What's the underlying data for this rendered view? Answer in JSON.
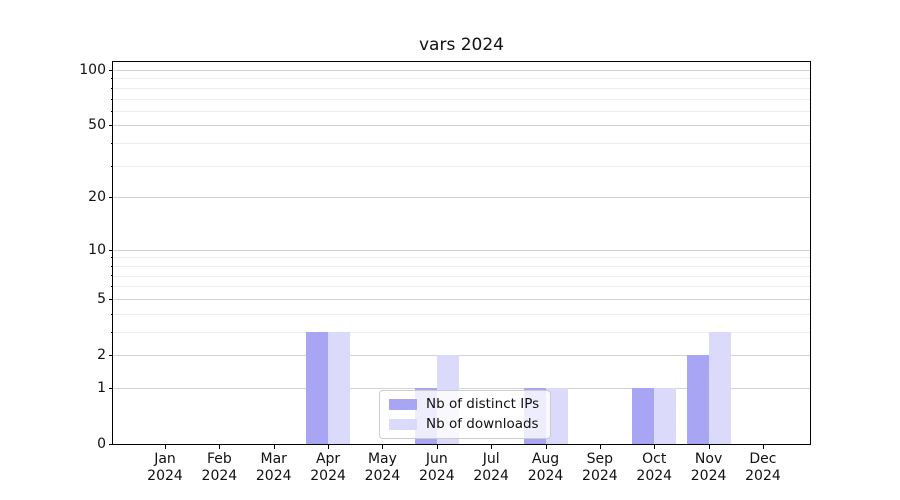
{
  "title": "vars 2024",
  "chart_data": {
    "type": "bar",
    "title": "vars 2024",
    "categories": [
      "Jan",
      "Feb",
      "Mar",
      "Apr",
      "May",
      "Jun",
      "Jul",
      "Aug",
      "Sep",
      "Oct",
      "Nov",
      "Dec"
    ],
    "x_year_line": "2024",
    "series": [
      {
        "name": "Nb of distinct IPs",
        "color": "#a8a6f4",
        "values": [
          0,
          0,
          0,
          3,
          0,
          1,
          0,
          1,
          0,
          1,
          2,
          0
        ]
      },
      {
        "name": "Nb of downloads",
        "color": "#dbdafa",
        "values": [
          0,
          0,
          0,
          3,
          0,
          2,
          0,
          1,
          0,
          1,
          3,
          0
        ]
      }
    ],
    "yscale": "log1p",
    "ylim": [
      0,
      110.45
    ],
    "yticks_major": [
      0,
      1,
      2,
      5,
      10,
      20,
      50,
      100
    ],
    "yticks_minor": [
      3,
      4,
      6,
      7,
      8,
      9,
      30,
      40,
      60,
      70,
      80,
      90
    ],
    "grid": true,
    "legend_position": "lower center",
    "colors": {
      "grid_major": "#d3d3d3",
      "grid_minor": "#ededed",
      "spine": "#000000",
      "background": "#ffffff"
    }
  }
}
